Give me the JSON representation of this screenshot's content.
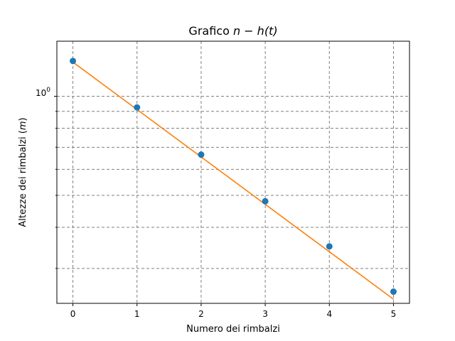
{
  "chart_data": {
    "type": "scatter",
    "title": "Grafico n − h(t)",
    "title_parts": {
      "prefix": "Grafico ",
      "math": "n − h(t)"
    },
    "xlabel": "Numero dei rimbalzi",
    "ylabel": "Altezze dei rimbalzi (m)",
    "ylabel_parts": {
      "prefix": "Altezze dei rimbalzi (",
      "math": "m",
      "suffix": ")"
    },
    "x_scale": "linear",
    "y_scale": "log",
    "xlim": [
      -0.25,
      5.25
    ],
    "ylim": [
      0.235,
      1.47
    ],
    "x_ticks": [
      0,
      1,
      2,
      3,
      4,
      5
    ],
    "x_tick_labels": [
      "0",
      "1",
      "2",
      "3",
      "4",
      "5"
    ],
    "y_major_ticks": [
      1.0
    ],
    "y_major_tick_label": {
      "base": "10",
      "exp": "0"
    },
    "y_minor_ticks": [
      0.3,
      0.4,
      0.5,
      0.6,
      0.7,
      0.8,
      0.9
    ],
    "grid": true,
    "grid_style": "dashed",
    "series": [
      {
        "kind": "points",
        "color": "#1f77b4",
        "x": [
          0,
          1,
          2,
          3,
          4,
          5
        ],
        "y": [
          1.28,
          0.925,
          0.665,
          0.48,
          0.35,
          0.255
        ]
      },
      {
        "kind": "fit-line",
        "color": "#ff7f0e",
        "x": [
          0,
          5
        ],
        "y": [
          1.27,
          0.242
        ]
      }
    ]
  }
}
